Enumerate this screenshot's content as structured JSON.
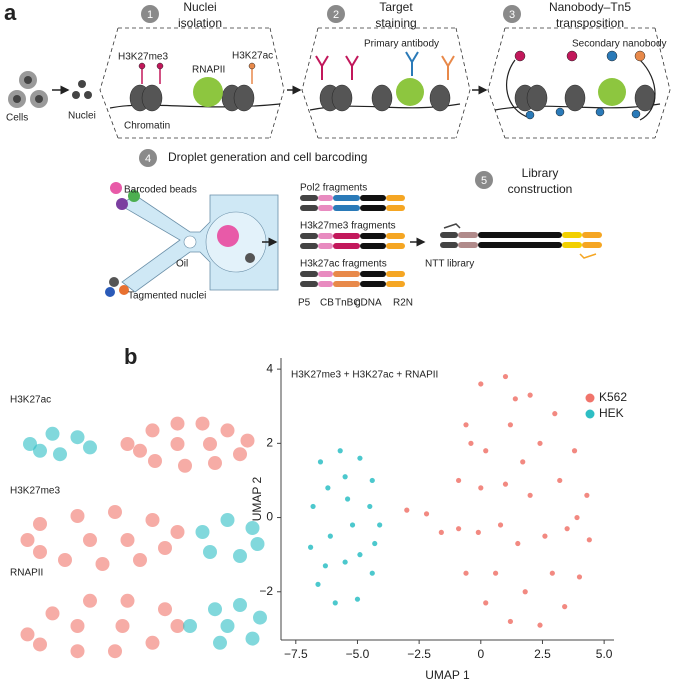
{
  "panel_labels": [
    "a",
    "b"
  ],
  "schematic": {
    "cells": "Cells",
    "nuclei": "Nuclei",
    "steps": [
      {
        "number": 1,
        "title": [
          "Nuclei",
          "isolation"
        ]
      },
      {
        "number": 2,
        "title": [
          "Target",
          "staining"
        ]
      },
      {
        "number": 3,
        "title": [
          "Nanobody–Tn5",
          "transposition"
        ]
      },
      {
        "number": 4,
        "title": [
          "Droplet generation and cell barcoding"
        ]
      },
      {
        "number": 5,
        "title": [
          "Library",
          "construction"
        ]
      }
    ],
    "labels": {
      "h3k27me3": "H3K27me3",
      "rnapii": "RNAPII",
      "h3k27ac": "H3K27ac",
      "chromatin": "Chromatin",
      "primary": "Primary antibody",
      "secondary": "Secondary nanobody",
      "beads": "Barcoded beads",
      "oil": "Oil",
      "tagmented": "Tagmented nuclei",
      "ntt": "NTT library"
    },
    "fragments": [
      "Pol2 fragments",
      "H3k27me3 fragments",
      "H3k27ac fragments"
    ],
    "segments": [
      "P5",
      "CB",
      "TnBC",
      "gDNA",
      "R2N"
    ]
  },
  "chart_data": [
    {
      "type": "scatter",
      "title": "H3K27me3 + H3K27ac + RNAPII",
      "xlabel": "UMAP 1",
      "ylabel": "UMAP 2",
      "xlim": [
        -8.1,
        5.4
      ],
      "ylim": [
        -3.3,
        4.3
      ],
      "xticks": [
        {
          "value": -7.5,
          "label": "−7.5"
        },
        {
          "value": -5,
          "label": "−5.0"
        },
        {
          "value": -2.5,
          "label": "−2.5"
        },
        0,
        2.5,
        {
          "value": 5,
          "label": "5.0"
        }
      ],
      "yticks": [
        {
          "value": -2,
          "label": "−2"
        },
        0,
        2,
        4
      ],
      "legend": "upper right",
      "series": [
        {
          "name": "K562",
          "color": "#f0746b",
          "x": [
            -0.6,
            0.0,
            1.0,
            2.0,
            3.0,
            3.8,
            4.3,
            4.4,
            4.0,
            3.4,
            2.4,
            1.2,
            0.2,
            -0.6,
            -0.9,
            -0.9,
            0.2,
            1.2,
            2.4,
            3.2,
            3.5,
            2.9,
            1.8,
            0.6,
            -0.1,
            0.0,
            1.0,
            2.0,
            1.5,
            2.6,
            0.8,
            1.7,
            -0.4,
            3.9,
            1.4,
            -2.2,
            -3.0,
            -1.6
          ],
          "values": [
            2.5,
            3.6,
            3.8,
            3.3,
            2.8,
            1.8,
            0.6,
            -0.6,
            -1.6,
            -2.4,
            -2.9,
            -2.8,
            -2.3,
            -1.5,
            -0.3,
            1.0,
            1.8,
            2.5,
            2.0,
            1.0,
            -0.3,
            -1.5,
            -2.0,
            -1.5,
            -0.4,
            0.8,
            0.9,
            0.6,
            -0.7,
            -0.5,
            -0.2,
            1.5,
            2.0,
            0.0,
            3.2,
            0.1,
            0.2,
            -0.4
          ]
        },
        {
          "name": "HEK",
          "color": "#2dbec4",
          "x": [
            -6.5,
            -5.7,
            -4.9,
            -4.4,
            -4.5,
            -5.2,
            -4.3,
            -4.4,
            -5.0,
            -5.9,
            -6.6,
            -6.9,
            -6.8,
            -6.2,
            -5.5,
            -6.1,
            -5.5,
            -4.9,
            -6.3,
            -5.4,
            -4.1
          ],
          "values": [
            1.5,
            1.8,
            1.6,
            1.0,
            0.3,
            -0.2,
            -0.7,
            -1.5,
            -2.2,
            -2.3,
            -1.8,
            -0.8,
            0.3,
            0.8,
            1.1,
            -0.5,
            -1.2,
            -1.0,
            -1.3,
            0.5,
            -0.2
          ]
        }
      ]
    },
    {
      "type": "scatter",
      "title": "H3K27ac",
      "xlim": [
        0,
        10
      ],
      "ylim": [
        0,
        10
      ],
      "series": [
        {
          "color": "#f0746b",
          "x": [
            4.5,
            5.5,
            6.5,
            7.5,
            8.5,
            9.3,
            9,
            8,
            6.8,
            5.6,
            6.5,
            7.8,
            5
          ],
          "values": [
            5,
            7,
            8,
            8,
            7,
            5.5,
            3.5,
            2.2,
            1.8,
            2.5,
            5,
            5,
            4
          ]
        },
        {
          "color": "#2dbec4",
          "x": [
            0.6,
            1.5,
            2.5,
            3,
            1.8,
            1
          ],
          "values": [
            5,
            6.5,
            6,
            4.5,
            3.5,
            4
          ]
        }
      ]
    },
    {
      "type": "scatter",
      "title": "H3K27me3",
      "xlim": [
        0,
        10
      ],
      "ylim": [
        0,
        10
      ],
      "series": [
        {
          "color": "#f0746b",
          "x": [
            0.5,
            1,
            2.5,
            4,
            5.5,
            6.5,
            6,
            5,
            3.5,
            2,
            1,
            3,
            4.5
          ],
          "values": [
            5,
            7,
            8,
            8.5,
            7.5,
            6,
            4,
            2.5,
            2,
            2.5,
            3.5,
            5,
            5
          ]
        },
        {
          "color": "#2dbec4",
          "x": [
            7.5,
            8.5,
            9.5,
            9.7,
            9,
            7.8
          ],
          "values": [
            6,
            7.5,
            6.5,
            4.5,
            3,
            3.5
          ]
        }
      ]
    },
    {
      "type": "scatter",
      "title": "RNAPII",
      "xlim": [
        0,
        10
      ],
      "ylim": [
        0,
        10
      ],
      "series": [
        {
          "color": "#f0746b",
          "x": [
            0.5,
            1.5,
            3,
            4.5,
            6,
            6.5,
            5.5,
            4,
            2.5,
            1,
            2.5,
            4.3
          ],
          "values": [
            4,
            6.5,
            8,
            8,
            7,
            5,
            3,
            2,
            2,
            2.8,
            5,
            5
          ]
        },
        {
          "color": "#2dbec4",
          "x": [
            7,
            8,
            9,
            9.8,
            9.5,
            8.2,
            8.5
          ],
          "values": [
            5,
            7,
            7.5,
            6,
            3.5,
            3,
            5
          ]
        }
      ]
    }
  ]
}
